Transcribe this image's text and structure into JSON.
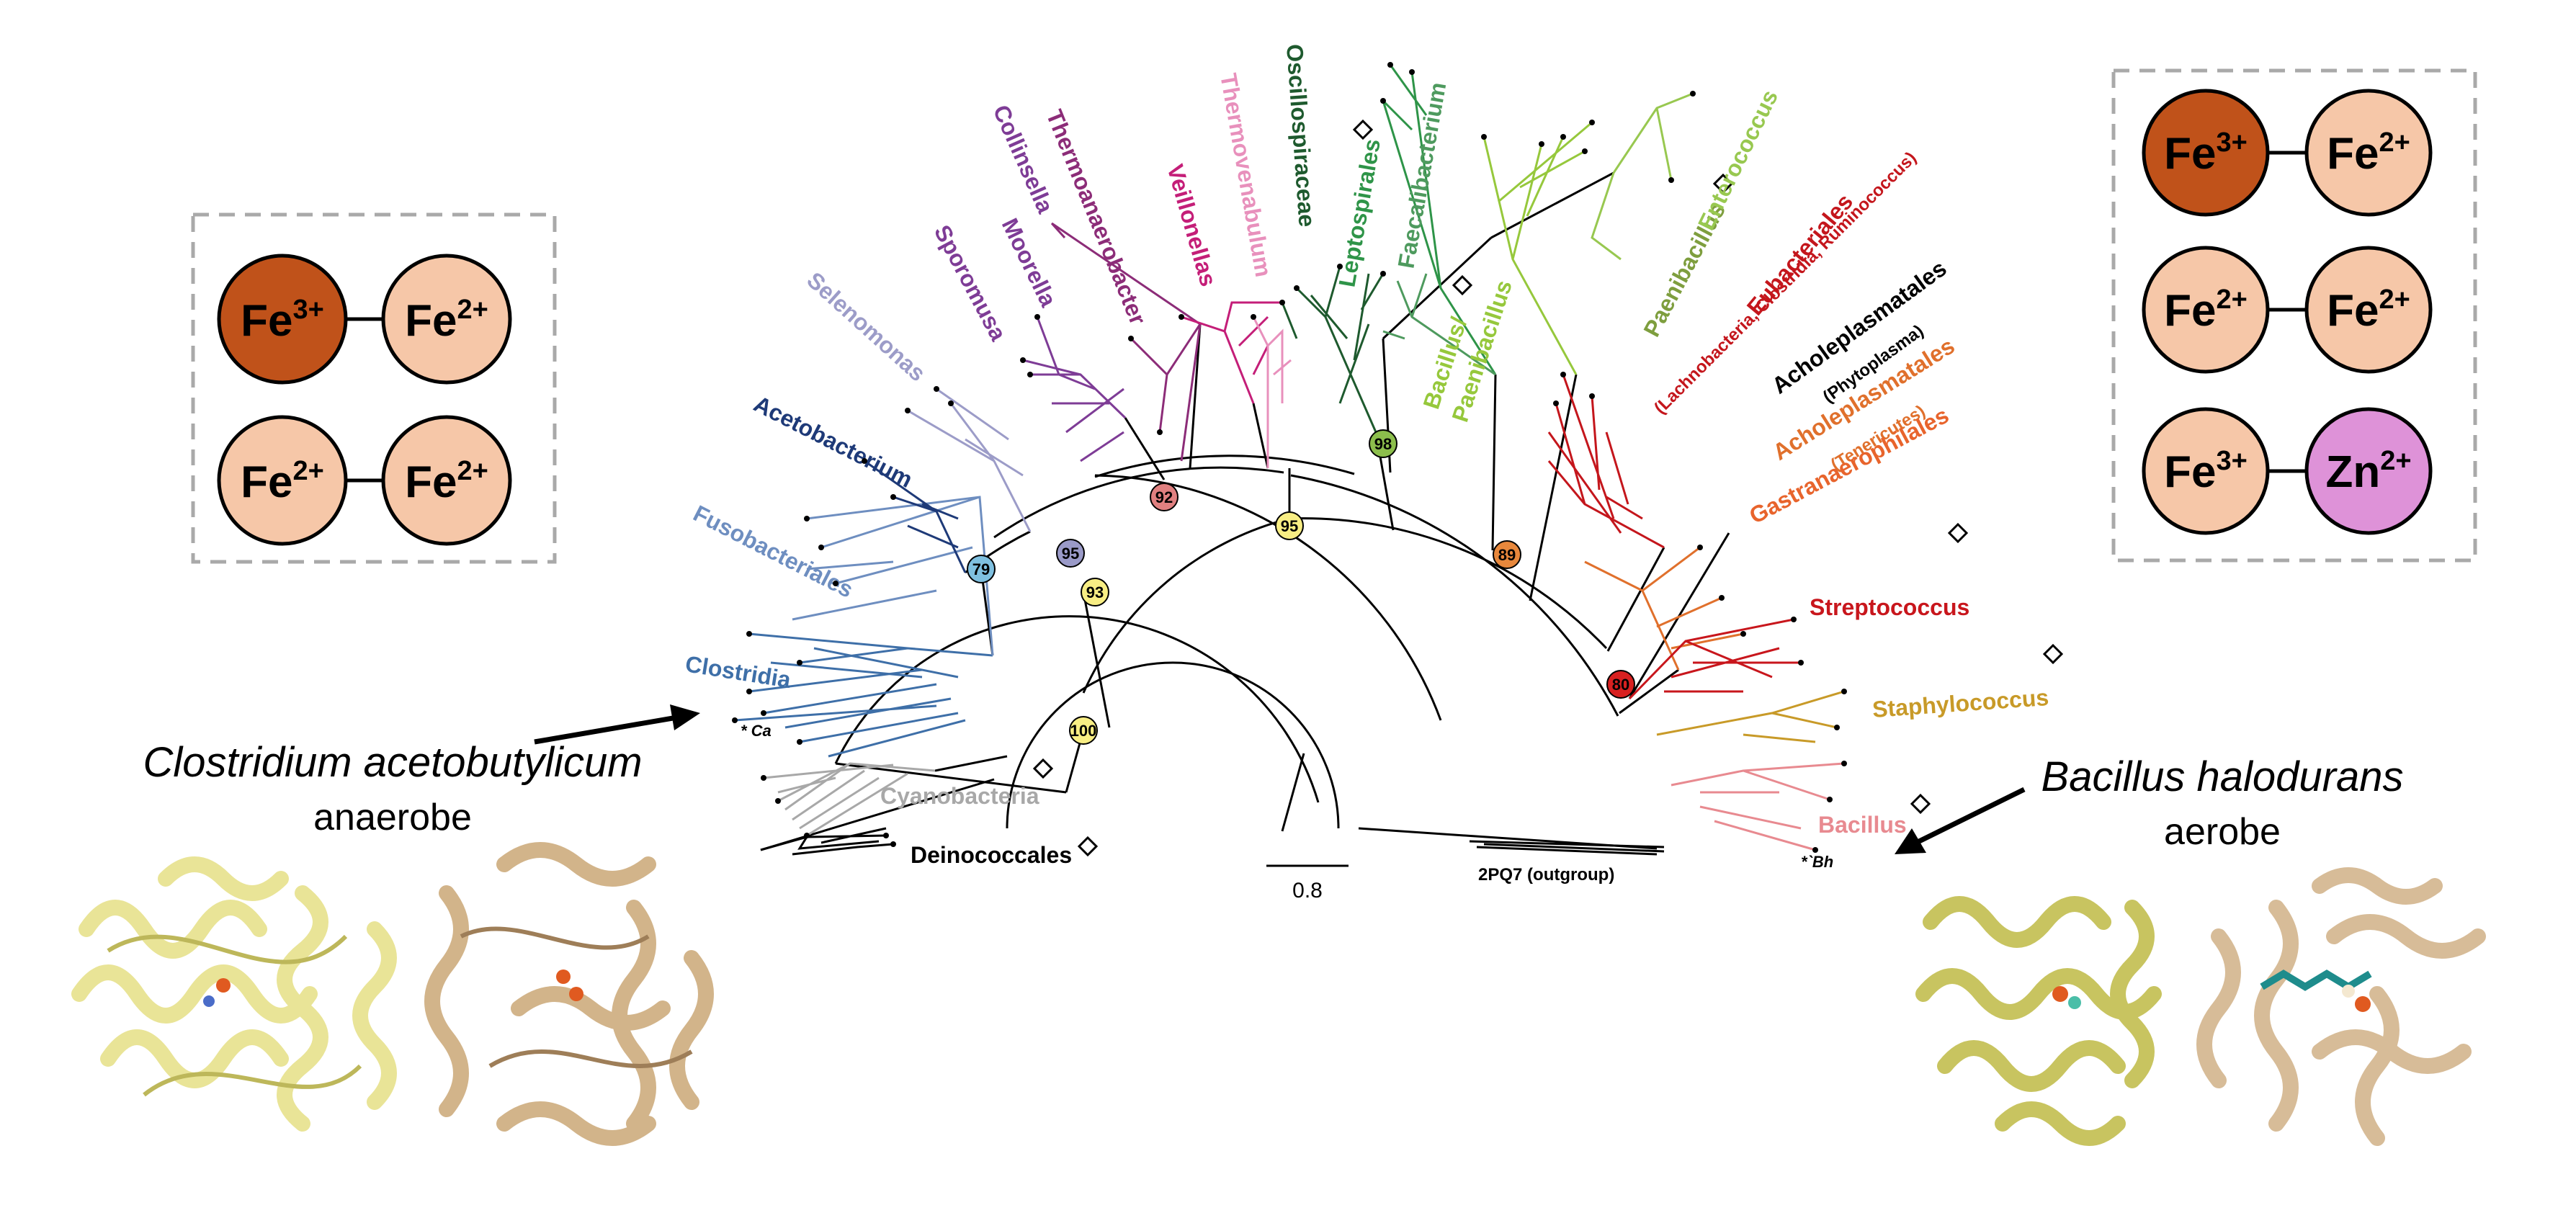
{
  "colors": {
    "fe3": "#C0521A",
    "fe2": "#F6C7A8",
    "zn2": "#DE92D8",
    "helix_yellow": "#E9E497",
    "helix_tan": "#D2B48A",
    "box_border": "#A9A9A9"
  },
  "left_box": {
    "pairs": [
      {
        "a": "Fe3+",
        "a_base": "Fe",
        "a_sup": "3+",
        "a_color": "fe3",
        "b": "Fe2+",
        "b_base": "Fe",
        "b_sup": "2+",
        "b_color": "fe2"
      },
      {
        "a": "Fe2+",
        "a_base": "Fe",
        "a_sup": "2+",
        "a_color": "fe2",
        "b": "Fe2+",
        "b_base": "Fe",
        "b_sup": "2+",
        "b_color": "fe2"
      }
    ]
  },
  "right_box": {
    "pairs": [
      {
        "a": "Fe3+",
        "a_base": "Fe",
        "a_sup": "3+",
        "a_color": "fe3",
        "b": "Fe2+",
        "b_base": "Fe",
        "b_sup": "2+",
        "b_color": "fe2"
      },
      {
        "a": "Fe2+",
        "a_base": "Fe",
        "a_sup": "2+",
        "a_color": "fe2",
        "b": "Fe2+",
        "b_base": "Fe",
        "b_sup": "2+",
        "b_color": "fe2"
      },
      {
        "a": "Fe3+",
        "a_base": "Fe",
        "a_sup": "3+",
        "a_color": "fe2",
        "b": "Zn2+",
        "b_base": "Zn",
        "b_sup": "2+",
        "b_color": "zn2"
      }
    ]
  },
  "left_organism": {
    "name": "Clostridium acetobutylicum",
    "lifestyle": "anaerobe"
  },
  "right_organism": {
    "name": "Bacillus halodurans",
    "lifestyle": "aerobe"
  },
  "tree": {
    "scale_value": "0.8",
    "outgroup": "2PQ7 (outgroup)",
    "marker_ca": "* Ca",
    "marker_bh": "*`Bh",
    "clades": [
      {
        "key": "deinococcales",
        "name": "Deinococcales",
        "color": "#000000"
      },
      {
        "key": "cyanobacteria",
        "name": "Cyanobacteria",
        "color": "#A8A8A8"
      },
      {
        "key": "clostridia",
        "name": "Clostridia",
        "color": "#3E6FA8"
      },
      {
        "key": "fusobacteriales",
        "name": "Fusobacteriales",
        "color": "#6E8EC0"
      },
      {
        "key": "acetobacterium",
        "name": "Acetobacterium",
        "color": "#1E3A78"
      },
      {
        "key": "selenomonas",
        "name": "Selenomonas",
        "color": "#9C9CC8"
      },
      {
        "key": "sporomusa",
        "name": "Sporomusa",
        "color": "#7E3C96"
      },
      {
        "key": "moorella",
        "name": "Moorella",
        "color": "#7E3C96"
      },
      {
        "key": "collinsella",
        "name": "Collinsella",
        "color": "#7E3C96"
      },
      {
        "key": "thermoanaerobacter",
        "name": "Thermoanaerobacter",
        "color": "#8C2C78"
      },
      {
        "key": "veillonellas",
        "name": "Veillonellas",
        "color": "#C41E78"
      },
      {
        "key": "thermovenabulum",
        "name": "Thermovenabulum",
        "color": "#E890BC"
      },
      {
        "key": "oscillospiraceae",
        "name": "Oscillospiraceae",
        "color": "#1E5A2E"
      },
      {
        "key": "leptospirales",
        "name": "Leptospirales",
        "color": "#2E9448"
      },
      {
        "key": "faecalibacterium",
        "name": "Faecalibacterium",
        "color": "#4E9A5E"
      },
      {
        "key": "bacillus_paeni",
        "name": "Bacillus/",
        "name2": "Paenibacillus",
        "color": "#96C83C"
      },
      {
        "key": "paenibacillus",
        "name": "Paenibacillus",
        "color": "#7E9E3E"
      },
      {
        "key": "enterococcus",
        "name": "Enterococcus",
        "color": "#98C850"
      },
      {
        "key": "eubacteriales",
        "name": "Eubacteriales",
        "sub": "(Lachnobacteria, Clostridia, Ruminococcus)",
        "color": "#C4161C"
      },
      {
        "key": "acholeplasmatales1",
        "name": "Acholeplasmatales",
        "sub": "(Phytoplasma)",
        "color": "#000000"
      },
      {
        "key": "acholeplasmatales2",
        "name": "Acholeplasmatales",
        "sub": "(Tenericutes)",
        "color": "#E0702C"
      },
      {
        "key": "gastranaerophilales",
        "name": "Gastranaerophilales",
        "color": "#E8642C"
      },
      {
        "key": "streptococcus",
        "name": "Streptococcus",
        "color": "#C8161C"
      },
      {
        "key": "staphylococcus",
        "name": "Staphylococcus",
        "color": "#C89A28"
      },
      {
        "key": "bacillus",
        "name": "Bacillus",
        "color": "#E88A90"
      }
    ],
    "bootstrap_nodes": [
      {
        "value": "100",
        "color": "#F8EE84"
      },
      {
        "value": "93",
        "color": "#F8EE84"
      },
      {
        "value": "95",
        "color": "#F8EE84"
      },
      {
        "value": "79",
        "color": "#7FC0E0"
      },
      {
        "value": "95",
        "color": "#9A9AC8"
      },
      {
        "value": "92",
        "color": "#E08080"
      },
      {
        "value": "98",
        "color": "#8CBE4C"
      },
      {
        "value": "89",
        "color": "#E8883C"
      },
      {
        "value": "80",
        "color": "#D82020"
      }
    ]
  }
}
